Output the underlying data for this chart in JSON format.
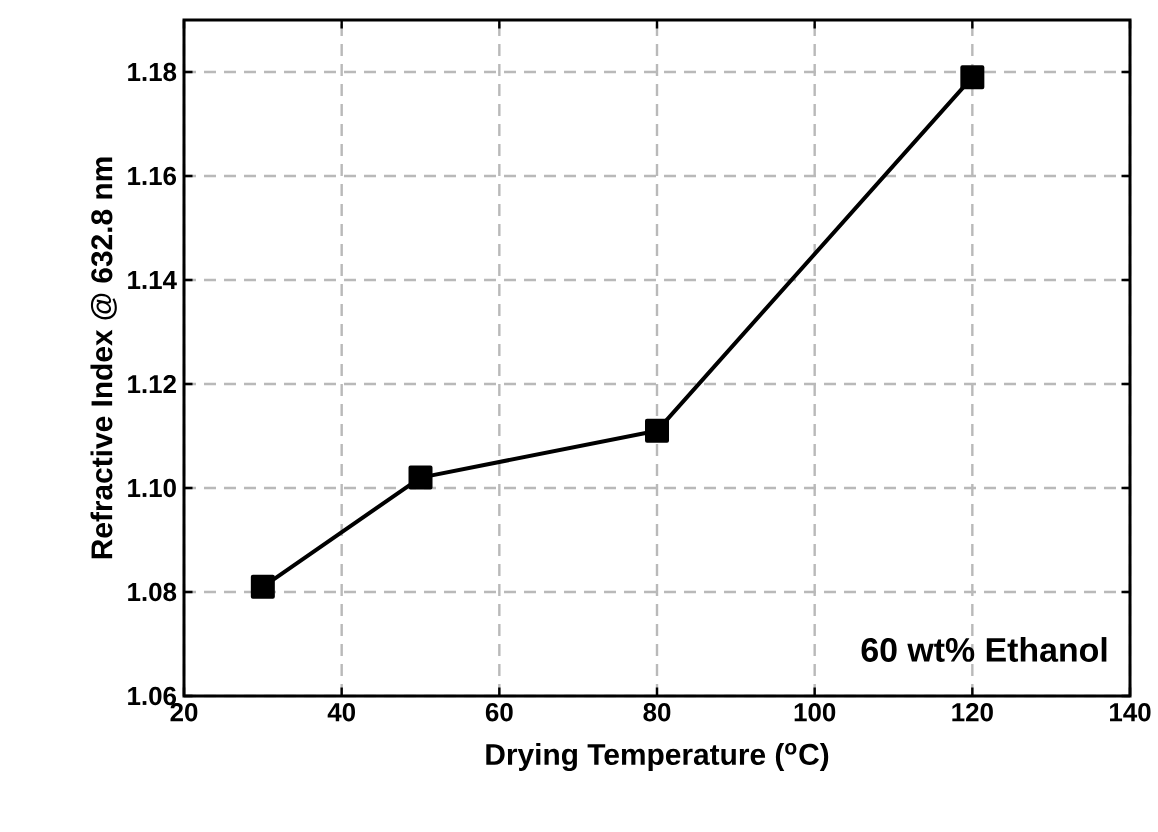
{
  "chart_data": {
    "type": "line",
    "xlabel": "Drying Temperature ($^{o}$C)",
    "ylabel": "Refractive Index @ 632.8 nm",
    "x": [
      30,
      50,
      80,
      120
    ],
    "series": [
      {
        "color": "#000000",
        "values": [
          1.081,
          1.102,
          1.111,
          1.179
        ]
      }
    ],
    "xlim": [
      20,
      140
    ],
    "xticks": [
      20,
      40,
      60,
      80,
      100,
      120,
      140
    ],
    "ylim": [
      1.06,
      1.19
    ],
    "yticks": [
      1.06,
      1.08,
      {
        "value": 1.1,
        "label": "1.10"
      },
      1.12,
      1.14,
      1.16,
      1.18
    ],
    "grid": true,
    "marker": "square",
    "line_style": "solid",
    "annotations": [
      "60 wt% Ethanol"
    ]
  }
}
